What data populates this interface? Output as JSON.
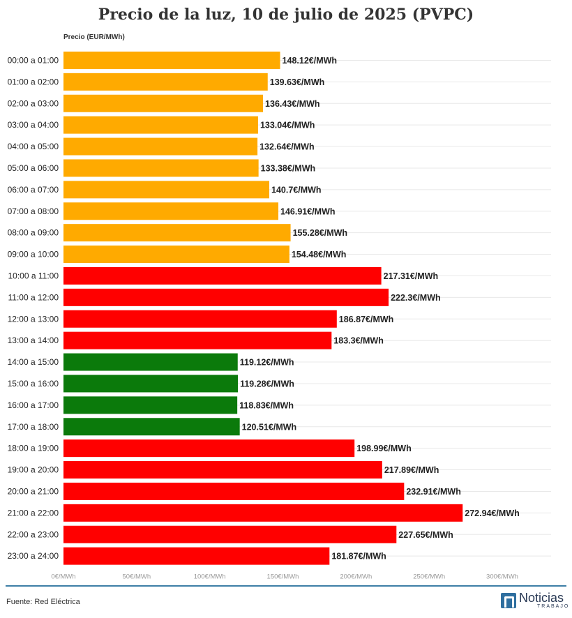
{
  "chart_data": {
    "type": "bar",
    "orientation": "horizontal",
    "title": "Precio de la luz, 10 de julio de 2025 (PVPC)",
    "ylabel": "Precio (EUR/MWh)",
    "xlim": [
      0,
      300
    ],
    "xticks": [
      0,
      50,
      100,
      150,
      200,
      250,
      300
    ],
    "tick_labels": [
      "0€/MWh",
      "50€/MWh",
      "100€/MWh",
      "150€/MWh",
      "200€/MWh",
      "250€/MWh",
      "300€/MWh"
    ],
    "grid": true,
    "categories": [
      "00:00 a 01:00",
      "01:00 a 02:00",
      "02:00 a 03:00",
      "03:00 a 04:00",
      "04:00 a 05:00",
      "05:00 a 06:00",
      "06:00 a 07:00",
      "07:00 a 08:00",
      "08:00 a 09:00",
      "09:00 a 10:00",
      "10:00 a 11:00",
      "11:00 a 12:00",
      "12:00 a 13:00",
      "13:00 a 14:00",
      "14:00 a 15:00",
      "15:00 a 16:00",
      "16:00 a 17:00",
      "17:00 a 18:00",
      "18:00 a 19:00",
      "19:00 a 20:00",
      "20:00 a 21:00",
      "21:00 a 22:00",
      "22:00 a 23:00",
      "23:00 a 24:00"
    ],
    "values": [
      148.12,
      139.63,
      136.43,
      133.04,
      132.64,
      133.38,
      140.7,
      146.91,
      155.28,
      154.48,
      217.31,
      222.3,
      186.87,
      183.3,
      119.12,
      119.28,
      118.83,
      120.51,
      198.99,
      217.89,
      232.91,
      272.94,
      227.65,
      181.87
    ],
    "value_labels": [
      "148.12€/MWh",
      "139.63€/MWh",
      "136.43€/MWh",
      "133.04€/MWh",
      "132.64€/MWh",
      "133.38€/MWh",
      "140.7€/MWh",
      "146.91€/MWh",
      "155.28€/MWh",
      "154.48€/MWh",
      "217.31€/MWh",
      "222.3€/MWh",
      "186.87€/MWh",
      "183.3€/MWh",
      "119.12€/MWh",
      "119.28€/MWh",
      "118.83€/MWh",
      "120.51€/MWh",
      "198.99€/MWh",
      "217.89€/MWh",
      "232.91€/MWh",
      "272.94€/MWh",
      "227.65€/MWh",
      "181.87€/MWh"
    ],
    "bar_levels": [
      "medio",
      "medio",
      "medio",
      "medio",
      "medio",
      "medio",
      "medio",
      "medio",
      "medio",
      "medio",
      "alto",
      "alto",
      "alto",
      "alto",
      "bajo",
      "bajo",
      "bajo",
      "bajo",
      "alto",
      "alto",
      "alto",
      "alto",
      "alto",
      "alto"
    ],
    "level_colors": {
      "bajo": "#0b7a0b",
      "medio": "#ffaa00",
      "alto": "#ff0000"
    }
  },
  "footer": {
    "source": "Fuente: Red Eléctrica",
    "line_color": "#3d7ea6"
  },
  "logo": {
    "name": "Noticias",
    "sub": "TRABAJO",
    "mark_color": "#2f6f9f",
    "icon": "n-logo-icon"
  }
}
